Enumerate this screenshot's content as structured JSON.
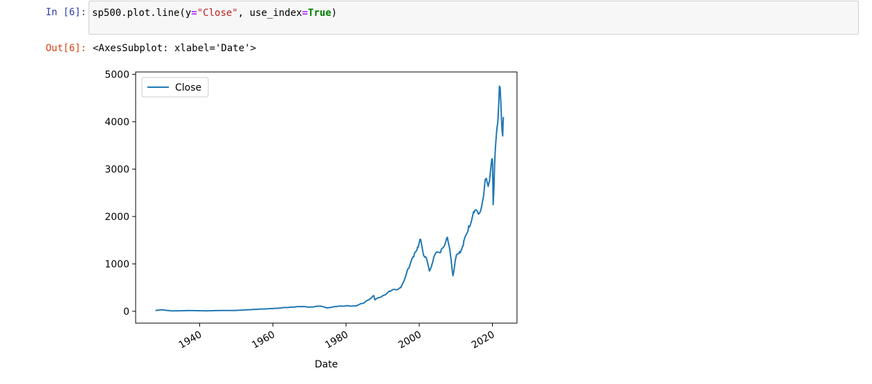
{
  "cell": {
    "input_prompt": "In [6]:",
    "code": {
      "t1": "sp500.plot.line(y",
      "t2": "=",
      "t3": "\"Close\"",
      "t4": ", use_index",
      "t5": "=",
      "t6": "True",
      "t7": ")"
    },
    "output_prompt": "Out[6]:",
    "output_text": "<AxesSubplot: xlabel='Date'>"
  },
  "colors": {
    "line": "#1f77b4",
    "input_prompt": "#303f9f",
    "output_prompt": "#d84315"
  },
  "chart_data": {
    "type": "line",
    "xlabel": "Date",
    "ylabel": "",
    "xlim": [
      1922.5,
      2026.7
    ],
    "ylim": [
      -250,
      5050
    ],
    "x_ticks": [
      1940,
      1960,
      1980,
      2000,
      2020
    ],
    "x_tick_labels": [
      "1940",
      "1960",
      "1980",
      "2000",
      "2020"
    ],
    "y_ticks": [
      0,
      1000,
      2000,
      3000,
      4000,
      5000
    ],
    "y_tick_labels": [
      "0",
      "1000",
      "2000",
      "3000",
      "4000",
      "5000"
    ],
    "legend": {
      "position": "top-left",
      "entries": [
        "Close"
      ]
    },
    "grid": false,
    "series": [
      {
        "name": "Close",
        "x": [
          1927.9,
          1929.5,
          1932.5,
          1937.0,
          1942.0,
          1945.0,
          1950.0,
          1955.0,
          1960.0,
          1965.0,
          1968.0,
          1970.0,
          1973.0,
          1974.8,
          1977.0,
          1980.0,
          1982.5,
          1985.0,
          1987.6,
          1987.9,
          1990.0,
          1992.0,
          1995.0,
          1997.0,
          1998.5,
          1999.5,
          2000.2,
          2001.0,
          2001.7,
          2002.8,
          2004.0,
          2006.0,
          2007.7,
          2008.5,
          2009.2,
          2010.0,
          2011.0,
          2012.0,
          2013.5,
          2015.0,
          2016.2,
          2017.5,
          2018.2,
          2019.0,
          2020.0,
          2020.2,
          2020.6,
          2021.3,
          2021.9,
          2022.3,
          2022.8,
          2023.0
        ],
        "y": [
          17,
          31,
          7,
          15,
          10,
          15,
          18,
          40,
          57,
          88,
          100,
          87,
          110,
          70,
          100,
          115,
          110,
          180,
          330,
          240,
          330,
          420,
          500,
          900,
          1150,
          1350,
          1520,
          1250,
          1150,
          850,
          1150,
          1300,
          1560,
          1200,
          750,
          1130,
          1260,
          1380,
          1800,
          2080,
          2050,
          2400,
          2800,
          2700,
          3200,
          2250,
          3100,
          3900,
          4750,
          4400,
          3700,
          4100
        ]
      }
    ]
  }
}
